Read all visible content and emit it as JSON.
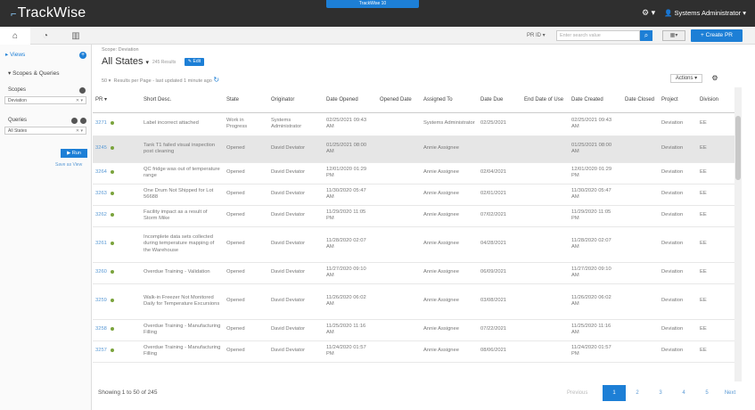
{
  "app": {
    "logo": "TrackWise",
    "env_badge": "TrackWise 10",
    "user": "Systems Administrator"
  },
  "toolbar": {
    "pr_id_label": "PR ID",
    "search_placeholder": "Enter search value",
    "create_label": "Create PR"
  },
  "sidebar": {
    "views_label": "Views",
    "scopes_queries_label": "Scopes & Queries",
    "scopes_label": "Scopes",
    "scopes_value": "Deviation",
    "queries_label": "Queries",
    "queries_value": "All States",
    "run_label": "Run",
    "save_view_label": "Save as View"
  },
  "main": {
    "scope_label": "Scope: Deviation",
    "title": "All States",
    "results": "245 Results",
    "edit_label": "Edit",
    "per_page_value": "50",
    "per_page_text": "Results per Page - last updated 1 minute ago",
    "actions_label": "Actions"
  },
  "table": {
    "headers": [
      "PR",
      "Short Desc.",
      "State",
      "Originator",
      "Date Opened",
      "Opened Date",
      "Assigned To",
      "Date Due",
      "End Date of Use",
      "Date Created",
      "Date Closed",
      "Project",
      "Division"
    ],
    "rows": [
      {
        "pr": "3271",
        "desc": "Label incorrect attached",
        "state": "Work in Progress",
        "orig": "Systems Administrator",
        "opened": "02/25/2021 09:43 AM",
        "odate": "",
        "assigned": "Systems Administrator",
        "due": "02/25/2021",
        "enduse": "",
        "created": "02/25/2021 09:43 AM",
        "closed": "",
        "project": "Deviation",
        "division": "EE"
      },
      {
        "pr": "3245",
        "desc": "Tank T1 failed visual inspection post cleaning",
        "state": "Opened",
        "orig": "David Deviator",
        "opened": "01/25/2021 08:00 AM",
        "odate": "",
        "assigned": "Annie Assignee",
        "due": "",
        "enduse": "",
        "created": "01/25/2021 08:00 AM",
        "closed": "",
        "project": "Deviation",
        "division": "EE"
      },
      {
        "pr": "3264",
        "desc": "QC fridge was out of temperature range",
        "state": "Opened",
        "orig": "David Deviator",
        "opened": "12/01/2020 01:29 PM",
        "odate": "",
        "assigned": "Annie Assignee",
        "due": "02/04/2021",
        "enduse": "",
        "created": "12/01/2020 01:29 PM",
        "closed": "",
        "project": "Deviation",
        "division": "EE"
      },
      {
        "pr": "3263",
        "desc": "One Drum Not Shipped for Lot 56688",
        "state": "Opened",
        "orig": "David Deviator",
        "opened": "11/30/2020 05:47 AM",
        "odate": "",
        "assigned": "Annie Assignee",
        "due": "02/01/2021",
        "enduse": "",
        "created": "11/30/2020 05:47 AM",
        "closed": "",
        "project": "Deviation",
        "division": "EE"
      },
      {
        "pr": "3262",
        "desc": "Facility impact as a result of Storm Mike",
        "state": "Opened",
        "orig": "David Deviator",
        "opened": "11/29/2020 11:05 PM",
        "odate": "",
        "assigned": "Annie Assignee",
        "due": "07/02/2021",
        "enduse": "",
        "created": "11/29/2020 11:05 PM",
        "closed": "",
        "project": "Deviation",
        "division": "EE"
      },
      {
        "pr": "3261",
        "desc": "Incomplete data sets collected during temperature mapping of the Warehouse",
        "state": "Opened",
        "orig": "David Deviator",
        "opened": "11/28/2020 02:07 AM",
        "odate": "",
        "assigned": "Annie Assignee",
        "due": "04/28/2021",
        "enduse": "",
        "created": "11/28/2020 02:07 AM",
        "closed": "",
        "project": "Deviation",
        "division": "EE"
      },
      {
        "pr": "3260",
        "desc": "Overdue Training - Validation",
        "state": "Opened",
        "orig": "David Deviator",
        "opened": "11/27/2020 09:10 AM",
        "odate": "",
        "assigned": "Annie Assignee",
        "due": "06/09/2021",
        "enduse": "",
        "created": "11/27/2020 09:10 AM",
        "closed": "",
        "project": "Deviation",
        "division": "EE"
      },
      {
        "pr": "3259",
        "desc": "Walk-in Freezer Not Monitored Daily for Temperature Excursions",
        "state": "Opened",
        "orig": "David Deviator",
        "opened": "11/26/2020 06:02 AM",
        "odate": "",
        "assigned": "Annie Assignee",
        "due": "03/08/2021",
        "enduse": "",
        "created": "11/26/2020 06:02 AM",
        "closed": "",
        "project": "Deviation",
        "division": "EE"
      },
      {
        "pr": "3258",
        "desc": "Overdue Training - Manufacturing Filling",
        "state": "Opened",
        "orig": "David Deviator",
        "opened": "11/25/2020 11:16 AM",
        "odate": "",
        "assigned": "Annie Assignee",
        "due": "07/22/2021",
        "enduse": "",
        "created": "11/25/2020 11:16 AM",
        "closed": "",
        "project": "Deviation",
        "division": "EE"
      },
      {
        "pr": "3257",
        "desc": "Overdue Training - Manufacturing Filling",
        "state": "Opened",
        "orig": "David Deviator",
        "opened": "11/24/2020 01:57 PM",
        "odate": "",
        "assigned": "Annie Assignee",
        "due": "08/06/2021",
        "enduse": "",
        "created": "11/24/2020 01:57 PM",
        "closed": "",
        "project": "Deviation",
        "division": "EE"
      }
    ]
  },
  "footer": {
    "showing": "Showing 1 to 50 of 245",
    "prev_label": "Previous",
    "pages": [
      "1",
      "2",
      "3",
      "4",
      "5"
    ],
    "next_label": "Next"
  },
  "colors": {
    "accent": "#1d7fd6",
    "topbar": "#2f2f2f"
  }
}
